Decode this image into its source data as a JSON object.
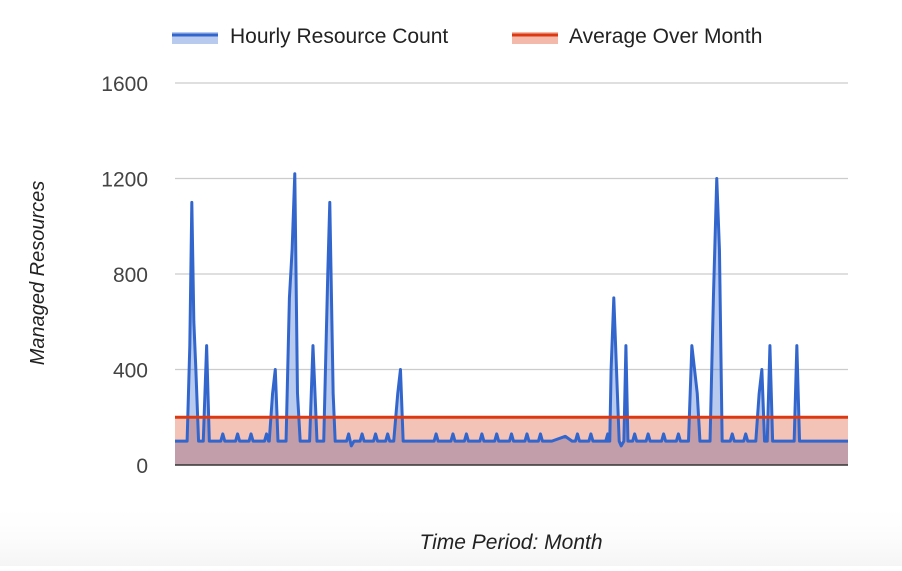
{
  "chart_data": {
    "type": "area",
    "title": "",
    "xlabel": "Time Period: Month",
    "ylabel": "Managed Resources",
    "ylim": [
      0,
      1600
    ],
    "yticks": [
      0,
      400,
      800,
      1200,
      1600
    ],
    "grid": true,
    "legend_position": "top",
    "x_range": [
      0,
      1
    ],
    "series": [
      {
        "name": "Hourly Resource Count",
        "color": "#3366cc",
        "type": "area",
        "points": [
          [
            0.0,
            100
          ],
          [
            0.018,
            100
          ],
          [
            0.022,
            500
          ],
          [
            0.025,
            1100
          ],
          [
            0.028,
            600
          ],
          [
            0.031,
            400
          ],
          [
            0.035,
            100
          ],
          [
            0.042,
            100
          ],
          [
            0.047,
            500
          ],
          [
            0.051,
            100
          ],
          [
            0.068,
            100
          ],
          [
            0.071,
            130
          ],
          [
            0.074,
            100
          ],
          [
            0.09,
            100
          ],
          [
            0.093,
            130
          ],
          [
            0.096,
            100
          ],
          [
            0.11,
            100
          ],
          [
            0.113,
            130
          ],
          [
            0.116,
            100
          ],
          [
            0.133,
            100
          ],
          [
            0.136,
            130
          ],
          [
            0.139,
            100
          ],
          [
            0.14,
            100
          ],
          [
            0.145,
            300
          ],
          [
            0.149,
            400
          ],
          [
            0.153,
            100
          ],
          [
            0.165,
            100
          ],
          [
            0.17,
            700
          ],
          [
            0.174,
            900
          ],
          [
            0.178,
            1220
          ],
          [
            0.182,
            300
          ],
          [
            0.186,
            100
          ],
          [
            0.2,
            100
          ],
          [
            0.205,
            500
          ],
          [
            0.211,
            100
          ],
          [
            0.221,
            100
          ],
          [
            0.227,
            800
          ],
          [
            0.23,
            1100
          ],
          [
            0.235,
            300
          ],
          [
            0.238,
            100
          ],
          [
            0.255,
            100
          ],
          [
            0.258,
            130
          ],
          [
            0.262,
            80
          ],
          [
            0.266,
            100
          ],
          [
            0.275,
            100
          ],
          [
            0.278,
            130
          ],
          [
            0.281,
            100
          ],
          [
            0.295,
            100
          ],
          [
            0.298,
            130
          ],
          [
            0.301,
            100
          ],
          [
            0.313,
            100
          ],
          [
            0.316,
            130
          ],
          [
            0.319,
            100
          ],
          [
            0.325,
            100
          ],
          [
            0.331,
            300
          ],
          [
            0.335,
            400
          ],
          [
            0.339,
            100
          ],
          [
            0.385,
            100
          ],
          [
            0.388,
            130
          ],
          [
            0.391,
            100
          ],
          [
            0.41,
            100
          ],
          [
            0.413,
            130
          ],
          [
            0.416,
            100
          ],
          [
            0.43,
            100
          ],
          [
            0.433,
            130
          ],
          [
            0.436,
            100
          ],
          [
            0.453,
            100
          ],
          [
            0.456,
            130
          ],
          [
            0.459,
            100
          ],
          [
            0.475,
            100
          ],
          [
            0.478,
            130
          ],
          [
            0.481,
            100
          ],
          [
            0.497,
            100
          ],
          [
            0.5,
            130
          ],
          [
            0.503,
            100
          ],
          [
            0.52,
            100
          ],
          [
            0.523,
            130
          ],
          [
            0.526,
            100
          ],
          [
            0.54,
            100
          ],
          [
            0.543,
            130
          ],
          [
            0.546,
            100
          ],
          [
            0.56,
            100
          ],
          [
            0.58,
            120
          ],
          [
            0.59,
            100
          ],
          [
            0.595,
            100
          ],
          [
            0.598,
            130
          ],
          [
            0.601,
            100
          ],
          [
            0.615,
            100
          ],
          [
            0.618,
            130
          ],
          [
            0.621,
            100
          ],
          [
            0.64,
            100
          ],
          [
            0.643,
            130
          ],
          [
            0.646,
            100
          ],
          [
            0.64,
            100
          ],
          [
            0.642,
            120
          ],
          [
            0.645,
            100
          ],
          [
            0.64,
            100
          ],
          [
            0.641,
            100
          ],
          [
            0.643,
            100
          ],
          [
            0.644,
            100
          ],
          [
            0.645,
            100
          ],
          [
            0.646,
            100
          ],
          [
            0.648,
            400
          ],
          [
            0.652,
            700
          ],
          [
            0.656,
            400
          ],
          [
            0.66,
            100
          ],
          [
            0.663,
            80
          ],
          [
            0.667,
            100
          ],
          [
            0.67,
            500
          ],
          [
            0.673,
            100
          ],
          [
            0.68,
            100
          ],
          [
            0.683,
            130
          ],
          [
            0.686,
            100
          ],
          [
            0.7,
            100
          ],
          [
            0.703,
            130
          ],
          [
            0.706,
            100
          ],
          [
            0.723,
            100
          ],
          [
            0.726,
            130
          ],
          [
            0.729,
            100
          ],
          [
            0.745,
            100
          ],
          [
            0.748,
            130
          ],
          [
            0.751,
            100
          ],
          [
            0.763,
            100
          ],
          [
            0.768,
            500
          ],
          [
            0.772,
            400
          ],
          [
            0.776,
            300
          ],
          [
            0.78,
            100
          ],
          [
            0.795,
            100
          ],
          [
            0.8,
            700
          ],
          [
            0.805,
            1200
          ],
          [
            0.809,
            900
          ],
          [
            0.813,
            100
          ],
          [
            0.825,
            100
          ],
          [
            0.828,
            130
          ],
          [
            0.831,
            100
          ],
          [
            0.845,
            100
          ],
          [
            0.848,
            130
          ],
          [
            0.851,
            100
          ],
          [
            0.863,
            100
          ],
          [
            0.868,
            300
          ],
          [
            0.872,
            400
          ],
          [
            0.876,
            100
          ],
          [
            0.88,
            100
          ],
          [
            0.884,
            500
          ],
          [
            0.888,
            100
          ],
          [
            0.92,
            100
          ],
          [
            0.924,
            500
          ],
          [
            0.928,
            100
          ],
          [
            1.0,
            100
          ]
        ]
      },
      {
        "name": "Average Over Month",
        "color": "#dc3912",
        "type": "area",
        "points": [
          [
            0,
            200
          ],
          [
            1,
            200
          ]
        ]
      }
    ]
  }
}
